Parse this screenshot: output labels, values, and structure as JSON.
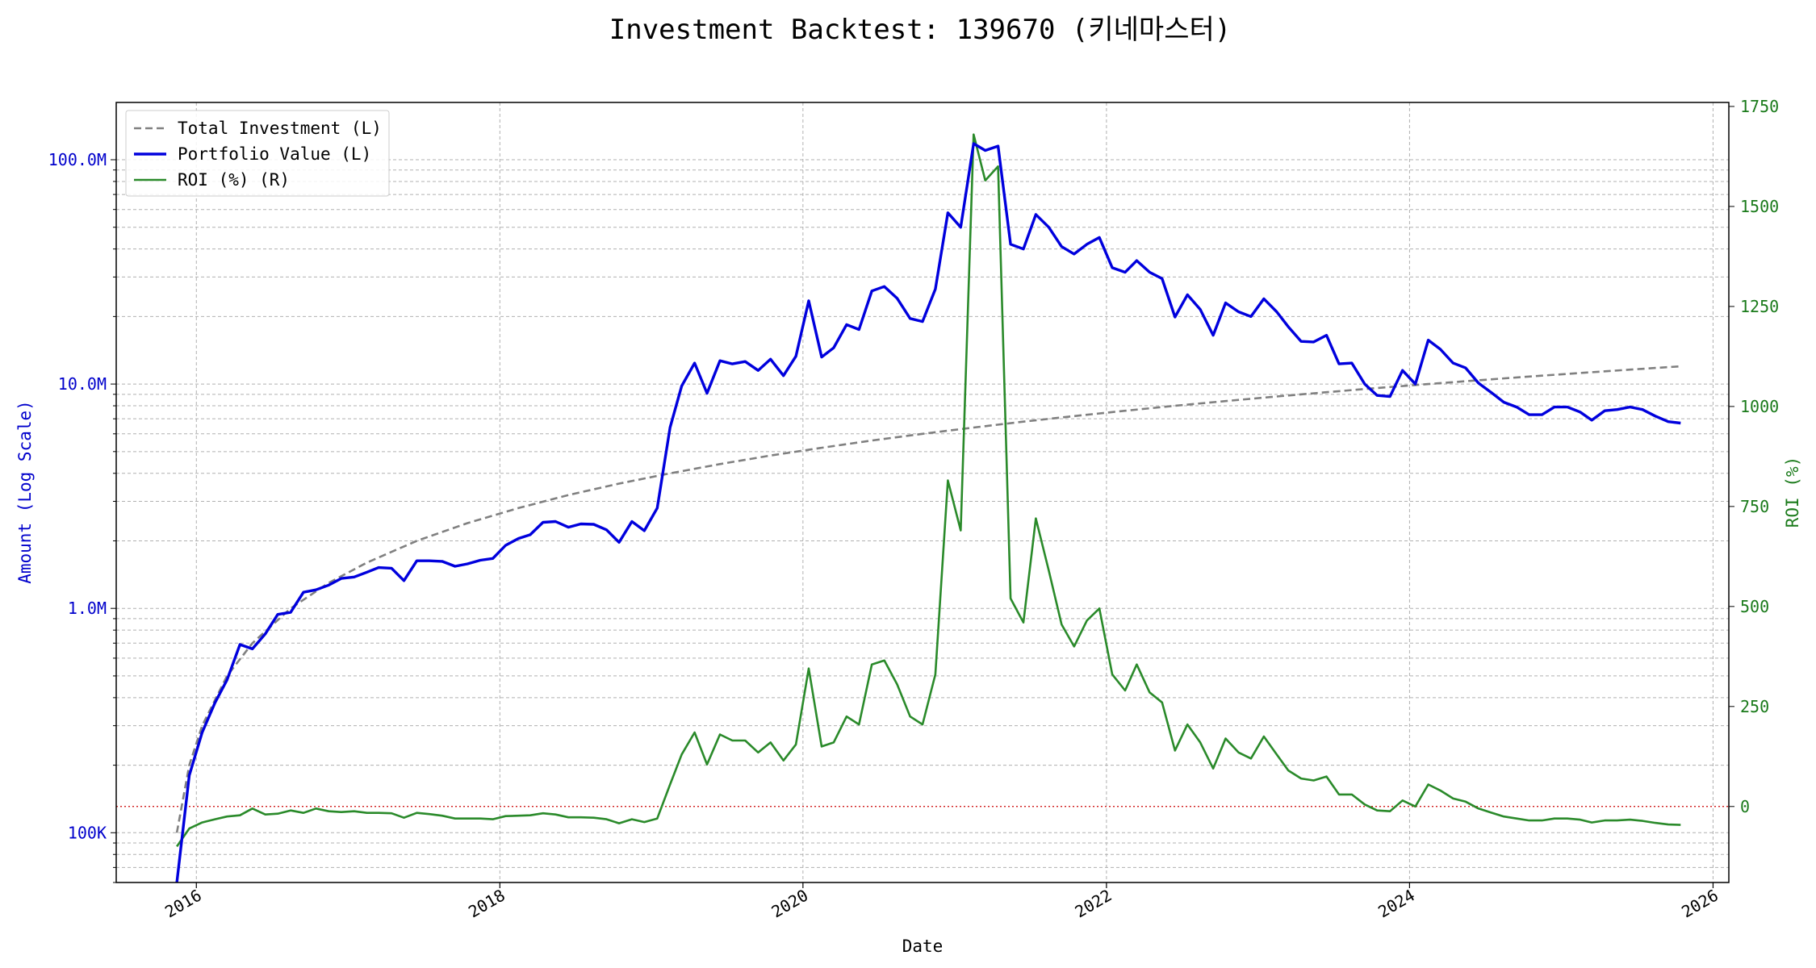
{
  "chart_data": {
    "type": "line",
    "title": "Investment Backtest: 139670 (키네마스터)",
    "xlabel": "Date",
    "ylabel_left": "Amount (Log Scale)",
    "ylabel_right": "ROI (%)",
    "x_range": [
      "2015-06-22",
      "2026-02-08"
    ],
    "left_axis": {
      "scale": "log",
      "range": [
        60000,
        180000000
      ],
      "major_ticks": [
        100000,
        1000000,
        10000000,
        100000000
      ],
      "major_tick_labels": [
        "100K",
        "1.0M",
        "10.0M",
        "100.0M"
      ],
      "color": "#0000cc"
    },
    "right_axis": {
      "scale": "linear",
      "range": [
        -190,
        1760
      ],
      "ticks": [
        0,
        250,
        500,
        750,
        1000,
        1250,
        1500,
        1750
      ],
      "tick_labels": [
        "0",
        "250",
        "500",
        "750",
        "1000",
        "1250",
        "1500",
        "1750"
      ],
      "color": "#1a7a1a"
    },
    "x_ticks": [
      "2016-01-01",
      "2018-01-01",
      "2020-01-01",
      "2022-01-01",
      "2024-01-01",
      "2026-01-01"
    ],
    "x_tick_labels": [
      "2016",
      "2018",
      "2020",
      "2022",
      "2024",
      "2026"
    ],
    "grid": true,
    "legend_placement": "top-left",
    "zero_line": {
      "axis": "right",
      "value": 0,
      "color": "#cc0000",
      "style": "dotted"
    },
    "series": [
      {
        "name": "Total Investment (L)",
        "axis": "left",
        "color": "#808080",
        "style": "dashed",
        "x": [
          "2015-11-15",
          "2015-12-15",
          "2016-01-15",
          "2016-03-15",
          "2016-05-15",
          "2016-08-15",
          "2016-11-15",
          "2017-02-15",
          "2017-06-15",
          "2017-10-15",
          "2018-02-15",
          "2018-06-15",
          "2018-10-15",
          "2019-02-15",
          "2019-06-15",
          "2019-10-15",
          "2020-02-15",
          "2020-06-15",
          "2020-10-15",
          "2021-02-15",
          "2021-06-15",
          "2021-10-15",
          "2022-02-15",
          "2022-06-15",
          "2022-10-15",
          "2023-02-15",
          "2023-06-15",
          "2023-10-15",
          "2024-02-15",
          "2024-06-15",
          "2024-10-15",
          "2025-02-15",
          "2025-06-15",
          "2025-10-15"
        ],
        "values": [
          100000,
          200000,
          300000,
          500000,
          700000,
          1000000,
          1300000,
          1600000,
          2000000,
          2400000,
          2800000,
          3200000,
          3600000,
          4000000,
          4400000,
          4800000,
          5200000,
          5600000,
          6000000,
          6400000,
          6800000,
          7200000,
          7600000,
          8000000,
          8400000,
          8800000,
          9200000,
          9600000,
          10000000,
          10400000,
          10800000,
          11200000,
          11600000,
          12000000
        ]
      },
      {
        "name": "Portfolio Value (L)",
        "axis": "left",
        "color": "#0000dd",
        "style": "solid",
        "x": [
          "2015-11-15",
          "2015-12-15",
          "2016-01-15",
          "2016-02-15",
          "2016-03-15",
          "2016-04-15",
          "2016-05-15",
          "2016-06-15",
          "2016-07-15",
          "2016-08-15",
          "2016-09-15",
          "2016-10-15",
          "2016-11-15",
          "2016-12-15",
          "2017-01-15",
          "2017-02-15",
          "2017-03-15",
          "2017-04-15",
          "2017-05-15",
          "2017-06-15",
          "2017-07-15",
          "2017-08-15",
          "2017-09-15",
          "2017-10-15",
          "2017-11-15",
          "2017-12-15",
          "2018-01-15",
          "2018-02-15",
          "2018-03-15",
          "2018-04-15",
          "2018-05-15",
          "2018-06-15",
          "2018-07-15",
          "2018-08-15",
          "2018-09-15",
          "2018-10-15",
          "2018-11-15",
          "2018-12-15",
          "2019-01-15",
          "2019-02-15",
          "2019-03-15",
          "2019-04-15",
          "2019-05-15",
          "2019-06-15",
          "2019-07-15",
          "2019-08-15",
          "2019-09-15",
          "2019-10-15",
          "2019-11-15",
          "2019-12-15",
          "2020-01-15",
          "2020-02-15",
          "2020-03-15",
          "2020-04-15",
          "2020-05-15",
          "2020-06-15",
          "2020-07-15",
          "2020-08-15",
          "2020-09-15",
          "2020-10-15",
          "2020-11-15",
          "2020-12-15",
          "2021-01-15",
          "2021-02-15",
          "2021-03-15",
          "2021-04-15",
          "2021-05-15",
          "2021-06-15",
          "2021-07-15",
          "2021-08-15",
          "2021-09-15",
          "2021-10-15",
          "2021-11-15",
          "2021-12-15",
          "2022-01-15",
          "2022-02-15",
          "2022-03-15",
          "2022-04-15",
          "2022-05-15",
          "2022-06-15",
          "2022-07-15",
          "2022-08-15",
          "2022-09-15",
          "2022-10-15",
          "2022-11-15",
          "2022-12-15",
          "2023-01-15",
          "2023-02-15",
          "2023-03-15",
          "2023-04-15",
          "2023-05-15",
          "2023-06-15",
          "2023-07-15",
          "2023-08-15",
          "2023-09-15",
          "2023-10-15",
          "2023-11-15",
          "2023-12-15",
          "2024-01-15",
          "2024-02-15",
          "2024-03-15",
          "2024-04-15",
          "2024-05-15",
          "2024-06-15",
          "2024-07-15",
          "2024-08-15",
          "2024-09-15",
          "2024-10-15",
          "2024-11-15",
          "2024-12-15",
          "2025-01-15",
          "2025-02-15",
          "2025-03-15",
          "2025-04-15",
          "2025-05-15",
          "2025-06-15",
          "2025-07-15",
          "2025-08-15",
          "2025-09-15",
          "2025-10-15"
        ],
        "values": [
          60000,
          180000,
          280000,
          380000,
          480000,
          690000,
          660000,
          770000,
          940000,
          960000,
          1180000,
          1210000,
          1270000,
          1360000,
          1380000,
          1450000,
          1520000,
          1510000,
          1330000,
          1630000,
          1630000,
          1620000,
          1540000,
          1580000,
          1640000,
          1670000,
          1910000,
          2050000,
          2130000,
          2420000,
          2440000,
          2300000,
          2380000,
          2370000,
          2240000,
          1970000,
          2440000,
          2220000,
          2800000,
          6400000,
          9800000,
          12400000,
          9100000,
          12700000,
          12300000,
          12600000,
          11500000,
          12900000,
          10900000,
          13300000,
          23500000,
          13200000,
          14500000,
          18400000,
          17500000,
          26000000,
          27200000,
          24100000,
          19600000,
          19000000,
          26500000,
          58000000,
          50000000,
          118000000,
          110000000,
          115000000,
          42000000,
          40000000,
          57000000,
          50000000,
          41000000,
          38000000,
          42000000,
          45000000,
          33000000,
          31500000,
          35500000,
          31500000,
          29500000,
          19900000,
          25000000,
          21500000,
          16500000,
          23000000,
          21000000,
          20000000,
          24000000,
          21000000,
          18000000,
          15500000,
          15400000,
          16500000,
          12300000,
          12400000,
          10000000,
          8900000,
          8800000,
          11500000,
          10000000,
          15700000,
          14300000,
          12400000,
          11800000,
          10100000,
          9200000,
          8300000,
          7900000,
          7300000,
          7300000,
          7900000,
          7900000,
          7500000,
          6900000,
          7600000,
          7700000,
          7900000,
          7700000,
          7200000,
          6800000,
          6700000
        ]
      },
      {
        "name": "ROI (%) (R)",
        "axis": "right",
        "color": "#2a8a2a",
        "style": "solid",
        "x": [
          "2015-11-15",
          "2015-12-15",
          "2016-01-15",
          "2016-02-15",
          "2016-03-15",
          "2016-04-15",
          "2016-05-15",
          "2016-06-15",
          "2016-07-15",
          "2016-08-15",
          "2016-09-15",
          "2016-10-15",
          "2016-11-15",
          "2016-12-15",
          "2017-01-15",
          "2017-02-15",
          "2017-03-15",
          "2017-04-15",
          "2017-05-15",
          "2017-06-15",
          "2017-07-15",
          "2017-08-15",
          "2017-09-15",
          "2017-10-15",
          "2017-11-15",
          "2017-12-15",
          "2018-01-15",
          "2018-02-15",
          "2018-03-15",
          "2018-04-15",
          "2018-05-15",
          "2018-06-15",
          "2018-07-15",
          "2018-08-15",
          "2018-09-15",
          "2018-10-15",
          "2018-11-15",
          "2018-12-15",
          "2019-01-15",
          "2019-02-15",
          "2019-03-15",
          "2019-04-15",
          "2019-05-15",
          "2019-06-15",
          "2019-07-15",
          "2019-08-15",
          "2019-09-15",
          "2019-10-15",
          "2019-11-15",
          "2019-12-15",
          "2020-01-15",
          "2020-02-15",
          "2020-03-15",
          "2020-04-15",
          "2020-05-15",
          "2020-06-15",
          "2020-07-15",
          "2020-08-15",
          "2020-09-15",
          "2020-10-15",
          "2020-11-15",
          "2020-12-15",
          "2021-01-15",
          "2021-02-15",
          "2021-03-15",
          "2021-04-15",
          "2021-05-15",
          "2021-06-15",
          "2021-07-15",
          "2021-08-15",
          "2021-09-15",
          "2021-10-15",
          "2021-11-15",
          "2021-12-15",
          "2022-01-15",
          "2022-02-15",
          "2022-03-15",
          "2022-04-15",
          "2022-05-15",
          "2022-06-15",
          "2022-07-15",
          "2022-08-15",
          "2022-09-15",
          "2022-10-15",
          "2022-11-15",
          "2022-12-15",
          "2023-01-15",
          "2023-02-15",
          "2023-03-15",
          "2023-04-15",
          "2023-05-15",
          "2023-06-15",
          "2023-07-15",
          "2023-08-15",
          "2023-09-15",
          "2023-10-15",
          "2023-11-15",
          "2023-12-15",
          "2024-01-15",
          "2024-02-15",
          "2024-03-15",
          "2024-04-15",
          "2024-05-15",
          "2024-06-15",
          "2024-07-15",
          "2024-08-15",
          "2024-09-15",
          "2024-10-15",
          "2024-11-15",
          "2024-12-15",
          "2025-01-15",
          "2025-02-15",
          "2025-03-15",
          "2025-04-15",
          "2025-05-15",
          "2025-06-15",
          "2025-07-15",
          "2025-08-15",
          "2025-09-15",
          "2025-10-15"
        ],
        "values": [
          -100,
          -55,
          -40,
          -32,
          -25,
          -22,
          -5,
          -20,
          -18,
          -10,
          -16,
          -5,
          -12,
          -14,
          -12,
          -16,
          -16,
          -17,
          -28,
          -16,
          -19,
          -23,
          -30,
          -30,
          -30,
          -32,
          -24,
          -23,
          -22,
          -17,
          -20,
          -27,
          -27,
          -28,
          -32,
          -42,
          -32,
          -39,
          -30,
          55,
          130,
          185,
          105,
          180,
          165,
          165,
          135,
          160,
          115,
          155,
          345,
          150,
          160,
          225,
          205,
          355,
          365,
          305,
          225,
          205,
          330,
          815,
          690,
          1680,
          1565,
          1600,
          520,
          460,
          720,
          590,
          455,
          400,
          465,
          495,
          330,
          290,
          355,
          285,
          260,
          140,
          205,
          160,
          95,
          170,
          135,
          120,
          175,
          130,
          90,
          70,
          65,
          75,
          30,
          30,
          5,
          -10,
          -12,
          15,
          0,
          55,
          40,
          20,
          12,
          -5,
          -15,
          -25,
          -30,
          -35,
          -35,
          -30,
          -30,
          -33,
          -40,
          -35,
          -35,
          -33,
          -36,
          -41,
          -45,
          -46
        ]
      }
    ]
  }
}
